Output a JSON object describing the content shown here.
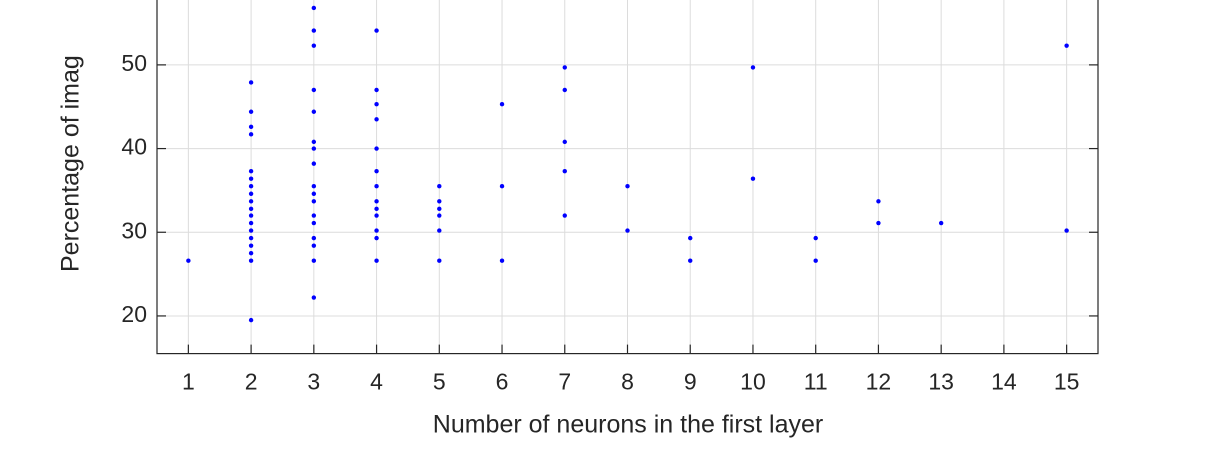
{
  "chart_data": {
    "type": "scatter",
    "y_label": "Percentage of imag",
    "x_label": "Number of neurons in the first layer",
    "xlim": [
      0.5,
      15.5
    ],
    "xticks": [
      1,
      2,
      3,
      4,
      5,
      6,
      7,
      8,
      9,
      10,
      11,
      12,
      13,
      14,
      15
    ],
    "ylim": [
      15.5,
      60
    ],
    "yticks": [
      20,
      30,
      40,
      50
    ],
    "grid": true,
    "series": [
      {
        "color": "#0000ff",
        "x": [
          1,
          2,
          2,
          2,
          2,
          2,
          2,
          2,
          2,
          2,
          2,
          2,
          2,
          2,
          2,
          2,
          2,
          2,
          2,
          3,
          3,
          3,
          3,
          3,
          3,
          3,
          3,
          3,
          3,
          3,
          3,
          3,
          3,
          3,
          3,
          3,
          4,
          4,
          4,
          4,
          4,
          4,
          4,
          4,
          4,
          4,
          4,
          4,
          4,
          5,
          5,
          5,
          5,
          5,
          5,
          6,
          6,
          6,
          7,
          7,
          7,
          7,
          7,
          8,
          8,
          9,
          9,
          10,
          10,
          11,
          11,
          12,
          12,
          13,
          15,
          15
        ],
        "values": [
          26.6,
          19.5,
          26.6,
          27.5,
          28.4,
          29.3,
          30.2,
          31.1,
          32.0,
          32.8,
          33.7,
          34.6,
          35.5,
          36.4,
          37.3,
          41.7,
          42.6,
          44.4,
          47.9,
          22.2,
          26.6,
          28.4,
          29.3,
          31.1,
          32.0,
          33.7,
          34.6,
          35.5,
          38.2,
          40.0,
          40.8,
          44.4,
          47.0,
          52.3,
          54.1,
          56.8,
          26.6,
          29.3,
          30.2,
          32.0,
          32.8,
          33.7,
          35.5,
          37.3,
          40.0,
          43.5,
          45.3,
          47.0,
          54.1,
          26.6,
          30.2,
          32.0,
          32.8,
          33.7,
          35.5,
          26.6,
          35.5,
          45.3,
          32.0,
          37.3,
          40.8,
          47.0,
          49.7,
          30.2,
          35.5,
          26.6,
          29.3,
          36.4,
          49.7,
          26.6,
          29.3,
          31.1,
          33.7,
          31.1,
          30.2,
          52.3
        ]
      }
    ]
  }
}
